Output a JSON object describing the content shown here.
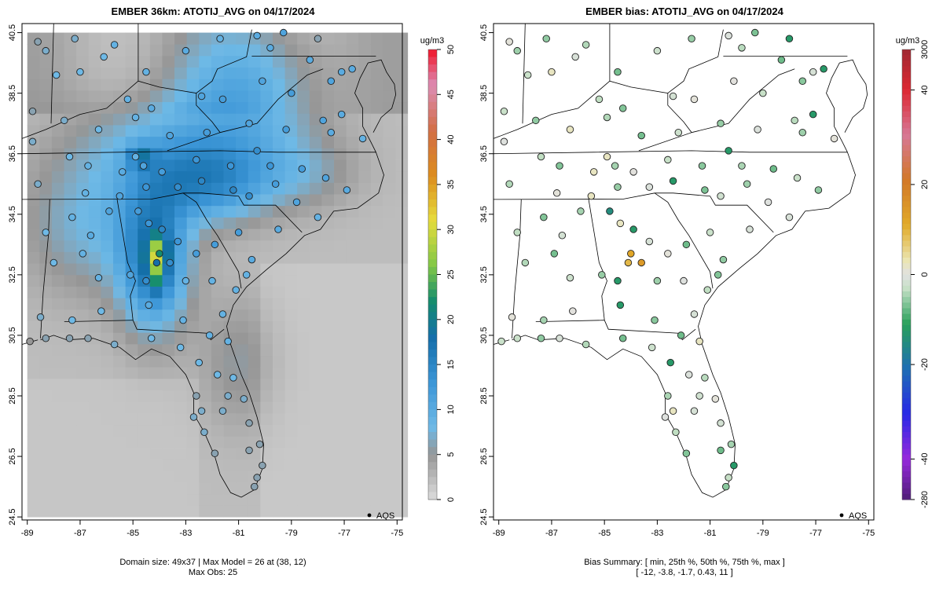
{
  "chart_data": [
    {
      "type": "heatmap",
      "title": "EMBER 36km: ATOTIJ_AVG on 04/17/2024",
      "x_ticks": [
        "-89",
        "-87",
        "-85",
        "-83",
        "-81",
        "-79",
        "-77",
        "-75"
      ],
      "y_ticks": [
        "24.5",
        "26.5",
        "28.5",
        "30.5",
        "32.5",
        "34.5",
        "36.5",
        "38.5",
        "40.5"
      ],
      "xlim": [
        -89.2,
        -74.8
      ],
      "ylim": [
        24.4,
        40.8
      ],
      "colorbar": {
        "units": "ug/m3",
        "ticks": [
          "0",
          "5",
          "10",
          "15",
          "20",
          "25",
          "30",
          "35",
          "40",
          "45",
          "50"
        ],
        "range": [
          0,
          50
        ]
      },
      "legend": {
        "entry": "AQS",
        "position": "bottom-right"
      },
      "footer": [
        "Domain size: 49x37 | Max Model = 26 at (38, 12)",
        "Max Obs: 25"
      ]
    },
    {
      "type": "scatter",
      "title": "EMBER bias: ATOTIJ_AVG on 04/17/2024",
      "x_ticks": [
        "-89",
        "-87",
        "-85",
        "-83",
        "-81",
        "-79",
        "-77",
        "-75"
      ],
      "y_ticks": [
        "24.5",
        "26.5",
        "28.5",
        "30.5",
        "32.5",
        "34.5",
        "36.5",
        "38.5",
        "40.5"
      ],
      "xlim": [
        -89.2,
        -74.8
      ],
      "ylim": [
        24.4,
        40.8
      ],
      "colorbar": {
        "units": "ug/m3",
        "ticks": [
          "3000",
          "40",
          "20",
          "0",
          "-20",
          "-40",
          "-280"
        ]
      },
      "legend": {
        "entry": "AQS",
        "position": "bottom-right"
      },
      "footer": [
        "Bias Summary: [ min, 25th %, 50th %, 75th %, max ]",
        "[ -12,  -3.8,  -1.7,  0.43,  11 ]"
      ],
      "summary": {
        "min": -12,
        "p25": -3.8,
        "p50": -1.7,
        "p75": 0.43,
        "max": 11
      }
    }
  ]
}
